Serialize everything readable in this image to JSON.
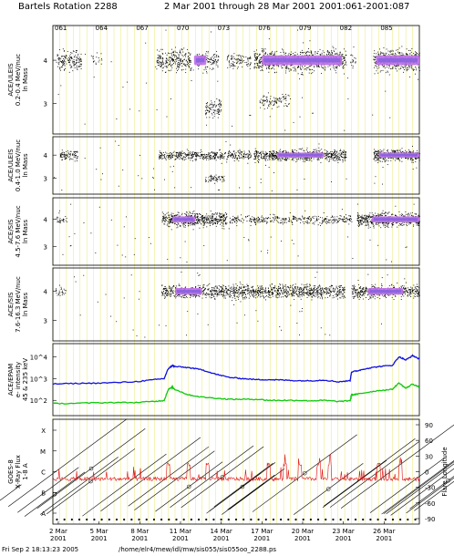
{
  "chart_data": {
    "type": "scatter",
    "title_parts": [
      "Bartels Rotation 2288",
      "2 Mar 2001 through 28 Mar 2001",
      "2001:061-2001:087"
    ],
    "doy_ticks": [
      "061",
      "064",
      "067",
      "070",
      "073",
      "076",
      "079",
      "082",
      "085"
    ],
    "date_ticks": [
      {
        "day": "2 Mar",
        "year": "2001"
      },
      {
        "day": "5 Mar",
        "year": "2001"
      },
      {
        "day": "8 Mar",
        "year": "2001"
      },
      {
        "day": "11 Mar",
        "year": "2001"
      },
      {
        "day": "14 Mar",
        "year": "2001"
      },
      {
        "day": "17 Mar",
        "year": "2001"
      },
      {
        "day": "20 Mar",
        "year": "2001"
      },
      {
        "day": "23 Mar",
        "year": "2001"
      },
      {
        "day": "26 Mar",
        "year": "2001"
      }
    ],
    "x_range_doy": [
      61,
      88
    ],
    "grid_color": "#e8e870",
    "panels": [
      {
        "kind": "mass",
        "ylabel": [
          "ACE/ULEIS",
          "0.2-0.4 MeV/nuc",
          "ln Mass"
        ],
        "yticks": [
          "4",
          "3"
        ],
        "bands": [
          {
            "start": 61.3,
            "end": 63.1,
            "level": 4.0,
            "density": 0.8
          },
          {
            "start": 63.8,
            "end": 64.6,
            "level": 4.0,
            "density": 0.2
          },
          {
            "start": 68.6,
            "end": 71.2,
            "level": 4.0,
            "density": 0.9
          },
          {
            "start": 71.5,
            "end": 73.2,
            "level": 4.0,
            "density": 0.6
          },
          {
            "start": 72.2,
            "end": 73.4,
            "level": 2.9,
            "density": 0.7
          },
          {
            "start": 73.8,
            "end": 75.6,
            "level": 4.0,
            "density": 0.5
          },
          {
            "start": 75.8,
            "end": 82.6,
            "level": 4.0,
            "density": 1.0
          },
          {
            "start": 76.2,
            "end": 78.4,
            "level": 3.1,
            "density": 0.4
          },
          {
            "start": 82.9,
            "end": 83.4,
            "level": 4.0,
            "density": 0.3
          },
          {
            "start": 84.6,
            "end": 88.0,
            "level": 4.0,
            "density": 1.0
          }
        ],
        "purple_segments": [
          {
            "start": 71.4,
            "end": 72.3
          },
          {
            "start": 76.4,
            "end": 82.3
          },
          {
            "start": 84.8,
            "end": 88.0
          }
        ]
      },
      {
        "kind": "mass",
        "ylabel": [
          "ACE/ULEIS",
          "0.4-1.0 MeV/nuc",
          "ln Mass"
        ],
        "yticks": [
          "4",
          "3"
        ],
        "bands": [
          {
            "start": 61.5,
            "end": 62.8,
            "level": 4.0,
            "density": 0.6
          },
          {
            "start": 68.8,
            "end": 75.6,
            "level": 4.0,
            "density": 0.6
          },
          {
            "start": 72.2,
            "end": 73.6,
            "level": 3.0,
            "density": 0.4
          },
          {
            "start": 75.8,
            "end": 82.6,
            "level": 4.0,
            "density": 0.9
          },
          {
            "start": 84.6,
            "end": 88.0,
            "level": 4.0,
            "density": 1.0
          }
        ],
        "purple_segments": [
          {
            "start": 77.5,
            "end": 81.0
          },
          {
            "start": 85.0,
            "end": 88.0
          }
        ]
      },
      {
        "kind": "mass",
        "ylabel": [
          "ACE/SIS",
          "4.5-7.6 MeV/nuc",
          "ln Mass"
        ],
        "yticks": [
          "4",
          "3"
        ],
        "bands": [
          {
            "start": 61.2,
            "end": 62.0,
            "level": 4.0,
            "density": 0.3
          },
          {
            "start": 69.0,
            "end": 73.8,
            "level": 4.0,
            "density": 1.0
          },
          {
            "start": 74.0,
            "end": 83.0,
            "level": 4.0,
            "density": 0.35
          },
          {
            "start": 83.4,
            "end": 88.0,
            "level": 4.0,
            "density": 1.0
          }
        ],
        "purple_segments": [
          {
            "start": 69.8,
            "end": 71.5
          },
          {
            "start": 84.5,
            "end": 88.0
          }
        ]
      },
      {
        "kind": "mass",
        "ylabel": [
          "ACE/SIS",
          "7.6-16.3 MeV/nuc",
          "ln Mass"
        ],
        "yticks": [
          "4",
          "3"
        ],
        "bands": [
          {
            "start": 61.2,
            "end": 62.0,
            "level": 4.0,
            "density": 0.3
          },
          {
            "start": 69.0,
            "end": 82.5,
            "level": 4.0,
            "density": 0.8
          },
          {
            "start": 83.0,
            "end": 88.0,
            "level": 4.0,
            "density": 0.8
          }
        ],
        "purple_segments": [
          {
            "start": 70.0,
            "end": 72.0
          },
          {
            "start": 84.2,
            "end": 86.8
          }
        ]
      },
      {
        "kind": "intensity",
        "ylabel": [
          "ACE/EPAM",
          "e- intensity",
          "45 & 235 keV"
        ],
        "yticks": [
          "10^4",
          "10^3",
          "10^2"
        ],
        "ylim_log10": [
          1.3,
          4.6
        ],
        "series": [
          {
            "energy": "45 keV",
            "color": "#1010e0",
            "x": [
              61.0,
              63.0,
              65.0,
              67.0,
              68.5,
              69.2,
              69.5,
              69.8,
              70.0,
              71.0,
              72.0,
              73.0,
              74.0,
              75.0,
              76.0,
              77.0,
              78.0,
              79.0,
              80.0,
              81.0,
              82.0,
              82.9,
              83.0,
              83.4,
              84.0,
              85.0,
              86.0,
              86.5,
              87.0,
              87.5,
              88.0
            ],
            "y": [
              2.75,
              2.78,
              2.8,
              2.85,
              2.95,
              3.0,
              3.45,
              3.6,
              3.55,
              3.5,
              3.4,
              3.2,
              3.05,
              3.0,
              2.95,
              2.95,
              2.93,
              2.9,
              2.9,
              2.93,
              2.85,
              2.9,
              3.3,
              3.35,
              3.45,
              3.55,
              3.6,
              4.0,
              3.85,
              4.05,
              3.9
            ]
          },
          {
            "energy": "235 keV",
            "color": "#10c810",
            "x": [
              61.0,
              63.0,
              65.0,
              67.0,
              68.5,
              69.2,
              69.5,
              69.8,
              70.0,
              71.0,
              72.0,
              73.0,
              74.0,
              75.0,
              76.0,
              77.0,
              78.0,
              79.0,
              80.0,
              81.0,
              82.0,
              82.9,
              83.0,
              83.4,
              84.0,
              85.0,
              86.0,
              86.5,
              87.0,
              87.5,
              88.0
            ],
            "y": [
              1.85,
              1.87,
              1.9,
              1.9,
              1.95,
              2.0,
              2.5,
              2.6,
              2.5,
              2.25,
              2.15,
              2.1,
              2.05,
              2.05,
              2.05,
              2.0,
              2.0,
              2.0,
              1.98,
              2.0,
              1.95,
              1.98,
              2.25,
              2.28,
              2.35,
              2.45,
              2.5,
              2.8,
              2.55,
              2.75,
              2.6
            ]
          }
        ]
      },
      {
        "kind": "xray",
        "ylabel": [
          "GOES-8",
          "X-Ray Flux",
          "1-8 A"
        ],
        "left_ticks": [
          "X",
          "M",
          "C",
          "B",
          "A"
        ],
        "right_label": "Flare Longitude",
        "right_ticks": [
          "90",
          "60",
          "30",
          "0",
          "-30",
          "-60",
          "-90"
        ],
        "xray_color": "#e01010",
        "xray_level": "C",
        "peak_flares": [
          {
            "doy": 69.5,
            "level": "C"
          },
          {
            "doy": 71.0,
            "level": "C"
          },
          {
            "doy": 72.4,
            "level": "C"
          },
          {
            "doy": 76.9,
            "level": "C"
          },
          {
            "doy": 78.1,
            "level": "C"
          },
          {
            "doy": 79.2,
            "level": "C"
          },
          {
            "doy": 80.6,
            "level": "C"
          },
          {
            "doy": 81.4,
            "level": "C"
          },
          {
            "doy": 85.0,
            "level": "C"
          },
          {
            "doy": 86.6,
            "level": "C"
          }
        ]
      }
    ]
  },
  "footer": {
    "timestamp": "Fri Sep  2 18:13:23 2005",
    "path": "/home/elr4/mew/idl/mw/sis055/sis055oo_2288.ps"
  }
}
